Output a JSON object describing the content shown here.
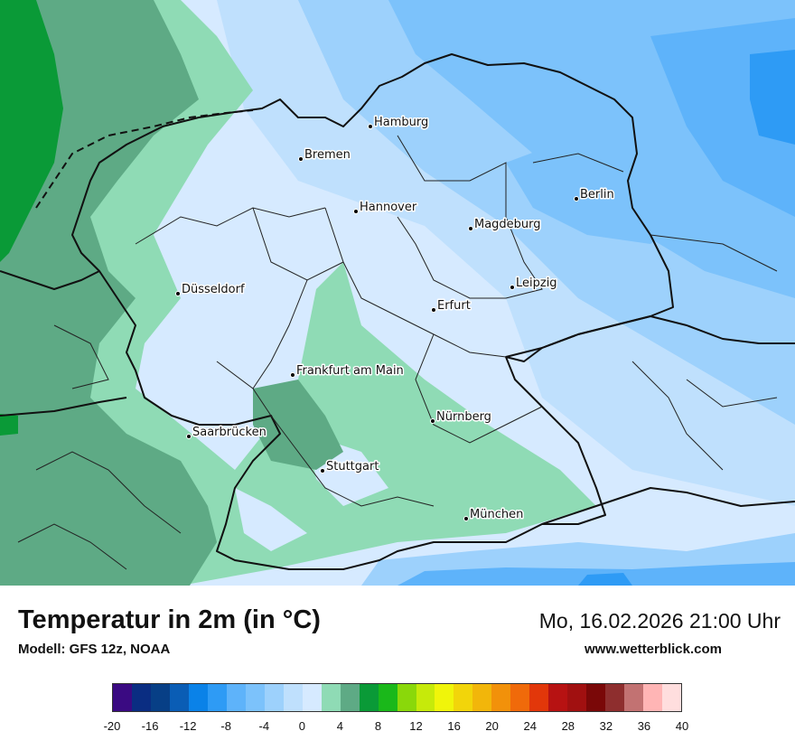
{
  "map": {
    "cities": [
      {
        "name": "Hamburg",
        "icon": "city-dot-icon"
      },
      {
        "name": "Bremen",
        "icon": "city-dot-icon"
      },
      {
        "name": "Berlin",
        "icon": "city-dot-icon"
      },
      {
        "name": "Hannover",
        "icon": "city-dot-icon"
      },
      {
        "name": "Magdeburg",
        "icon": "city-dot-icon"
      },
      {
        "name": "Düsseldorf",
        "icon": "city-dot-icon"
      },
      {
        "name": "Leipzig",
        "icon": "city-dot-icon"
      },
      {
        "name": "Erfurt",
        "icon": "city-dot-icon"
      },
      {
        "name": "Frankfurt am Main",
        "icon": "city-dot-icon"
      },
      {
        "name": "Nürnberg",
        "icon": "city-dot-icon"
      },
      {
        "name": "Saarbrücken",
        "icon": "city-dot-icon"
      },
      {
        "name": "Stuttgart",
        "icon": "city-dot-icon"
      },
      {
        "name": "München",
        "icon": "city-dot-icon"
      }
    ]
  },
  "footer": {
    "title": "Temperatur in 2m (in °C)",
    "model": "Modell: GFS 12z, NOAA",
    "datetime": "Mo, 16.02.2026 21:00 Uhr",
    "website": "www.wetterblick.com"
  },
  "legend": {
    "colors": [
      "#3a0a82",
      "#0a2d82",
      "#073f86",
      "#0a5db5",
      "#0a82e8",
      "#2e9bf5",
      "#5eb3fa",
      "#7cc2fb",
      "#9dd1fc",
      "#bfe0fd",
      "#d6eaff",
      "#8fdbb5",
      "#5eaa85",
      "#0a9a37",
      "#1ab81a",
      "#8ad80a",
      "#c6ea0a",
      "#f0f50a",
      "#f2d50a",
      "#f2b60a",
      "#f2910a",
      "#f06a0a",
      "#e2370a",
      "#b71212",
      "#a11010",
      "#7a0808",
      "#8e2e2e",
      "#c27272",
      "#ffb5b5",
      "#ffdede"
    ],
    "ticks": [
      "-20",
      "-16",
      "-12",
      "-8",
      "-4",
      "0",
      "4",
      "8",
      "12",
      "16",
      "20",
      "24",
      "28",
      "32",
      "36",
      "40"
    ]
  }
}
